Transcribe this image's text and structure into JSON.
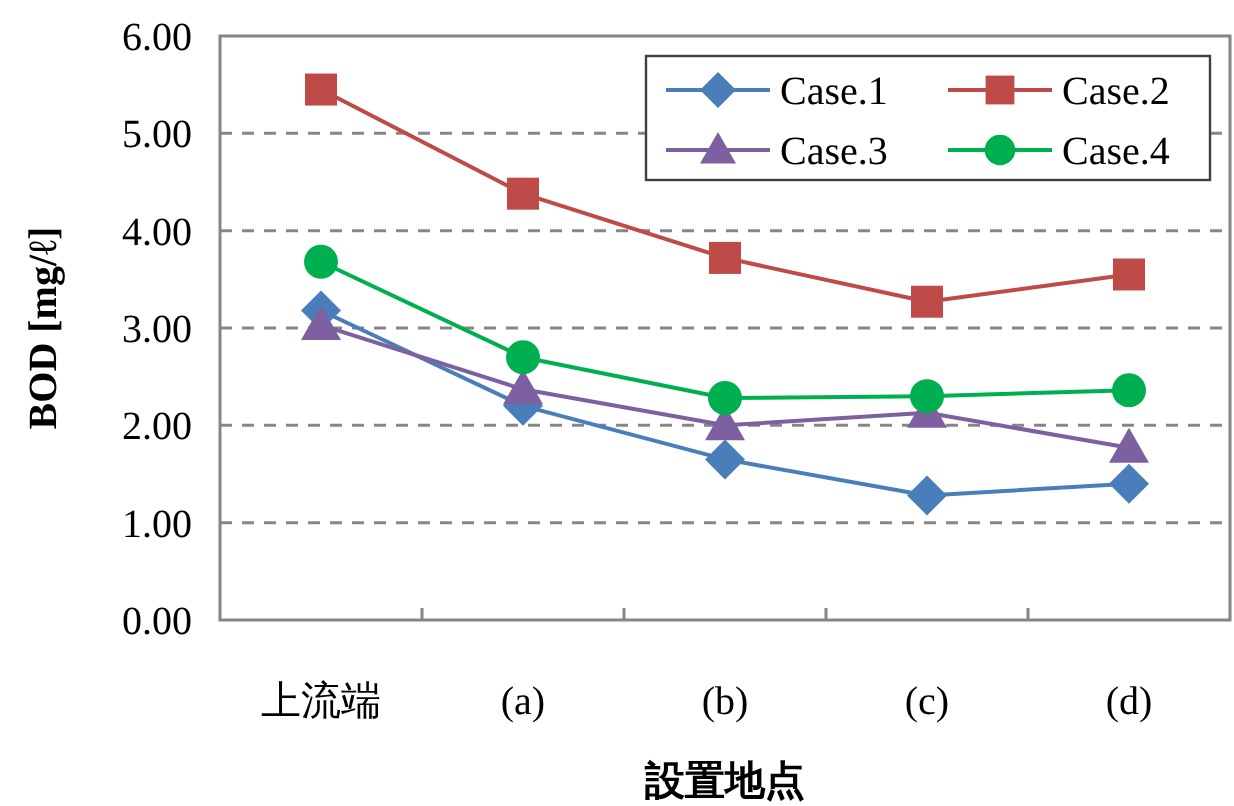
{
  "chart_data": {
    "type": "line",
    "xlabel": "設置地点",
    "ylabel": "BOD [mg/ℓ]",
    "categories": [
      "上流端",
      "(a)",
      "(b)",
      "(c)",
      "(d)"
    ],
    "series": [
      {
        "name": "Case.1",
        "color": "#4a7ebb",
        "marker": "diamond",
        "values": [
          3.18,
          2.2,
          1.65,
          1.28,
          1.4
        ]
      },
      {
        "name": "Case.2",
        "color": "#be4b48",
        "marker": "square",
        "values": [
          5.45,
          4.38,
          3.72,
          3.27,
          3.55
        ]
      },
      {
        "name": "Case.3",
        "color": "#7d60a0",
        "marker": "triangle",
        "values": [
          3.03,
          2.37,
          2.0,
          2.13,
          1.77
        ]
      },
      {
        "name": "Case.4",
        "color": "#00b050",
        "marker": "circle",
        "values": [
          3.68,
          2.7,
          2.28,
          2.3,
          2.36
        ]
      }
    ],
    "ylim": [
      0,
      6
    ],
    "yticks": [
      {
        "value": 0,
        "label": "0.00"
      },
      {
        "value": 1,
        "label": "1.00"
      },
      {
        "value": 2,
        "label": "2.00"
      },
      {
        "value": 3,
        "label": "3.00"
      },
      {
        "value": 4,
        "label": "4.00"
      },
      {
        "value": 5,
        "label": "5.00"
      },
      {
        "value": 6,
        "label": "6.00"
      }
    ],
    "grid": "y",
    "legend": "top right"
  }
}
